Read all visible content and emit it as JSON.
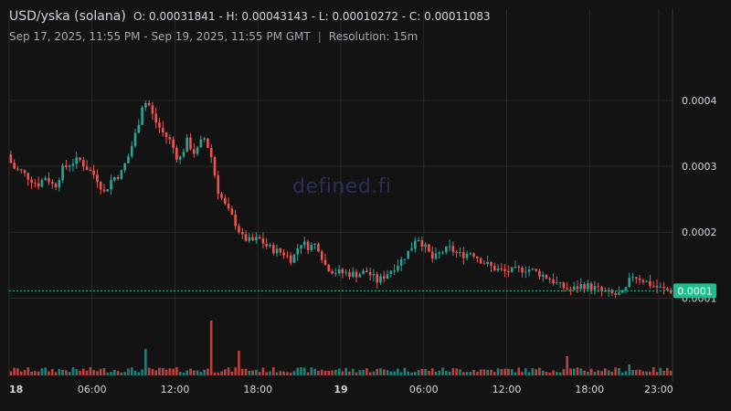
{
  "header": {
    "symbol": "USD/yska (solana)",
    "ohlc": "O: 0.00031841 - H: 0.00043143 - L: 0.00010272 - C: 0.00011083",
    "range": "Sep 17, 2025, 11:55 PM - Sep 19, 2025, 11:55 PM GMT",
    "separator": "|",
    "resolution": "Resolution: 15m"
  },
  "watermark": "defined.fi",
  "colors": {
    "up": "#26a69a",
    "down": "#ef5350",
    "last_price": "#1dbf8f",
    "grid": "#2a2a2a",
    "axis_text": "#d1d4dc",
    "background": "#131313"
  },
  "chart_data": {
    "type": "candlestick",
    "interval": "15m",
    "yaxis": {
      "position": "right",
      "ticks": [
        "0.0004",
        "0.0003",
        "0.0002",
        "0.0001"
      ],
      "tick_values": [
        0.0004,
        0.0003,
        0.0002,
        0.0001
      ],
      "ylim": [
        8.8e-05,
        0.00049
      ]
    },
    "xaxis": {
      "ticks": [
        "18",
        "06:00",
        "12:00",
        "18:00",
        "19",
        "06:00",
        "12:00",
        "18:00",
        "23:00"
      ],
      "tick_hours": [
        0,
        6,
        12,
        18,
        24,
        30,
        36,
        42,
        47
      ],
      "bold_ticks": [
        "18",
        "19"
      ],
      "xlim_hours": [
        0,
        48
      ]
    },
    "last_price_label": "0.0001",
    "last_price": 0.000111,
    "price_path": [
      [
        0,
        0.000318
      ],
      [
        0.4,
        0.000298
      ],
      [
        1.0,
        0.000292
      ],
      [
        1.6,
        0.000282
      ],
      [
        2.2,
        0.000272
      ],
      [
        2.8,
        0.000285
      ],
      [
        3.4,
        0.000268
      ],
      [
        4.0,
        0.000296
      ],
      [
        4.6,
        0.000305
      ],
      [
        5.2,
        0.00031
      ],
      [
        5.8,
        0.000296
      ],
      [
        6.4,
        0.000285
      ],
      [
        7.0,
        0.00026
      ],
      [
        7.6,
        0.000282
      ],
      [
        8.2,
        0.000288
      ],
      [
        8.8,
        0.000318
      ],
      [
        9.4,
        0.000358
      ],
      [
        9.8,
        0.000398
      ],
      [
        10.2,
        0.000395
      ],
      [
        10.6,
        0.000372
      ],
      [
        11.2,
        0.000352
      ],
      [
        11.8,
        0.000338
      ],
      [
        12.4,
        0.000308
      ],
      [
        13.0,
        0.000338
      ],
      [
        13.6,
        0.000318
      ],
      [
        14.2,
        0.000345
      ],
      [
        14.7,
        0.00032
      ],
      [
        15.2,
        0.000265
      ],
      [
        15.8,
        0.000238
      ],
      [
        16.4,
        0.000218
      ],
      [
        17.0,
        0.000192
      ],
      [
        17.6,
        0.000186
      ],
      [
        18.2,
        0.00019
      ],
      [
        18.8,
        0.000178
      ],
      [
        19.4,
        0.000172
      ],
      [
        20.0,
        0.000168
      ],
      [
        20.6,
        0.000158
      ],
      [
        21.2,
        0.000185
      ],
      [
        21.8,
        0.000178
      ],
      [
        22.4,
        0.000182
      ],
      [
        23.0,
        0.00015
      ],
      [
        23.6,
        0.00014
      ],
      [
        24.4,
        0.000138
      ],
      [
        25.2,
        0.000136
      ],
      [
        26.0,
        0.00014
      ],
      [
        26.8,
        0.000125
      ],
      [
        27.6,
        0.00014
      ],
      [
        28.4,
        0.000155
      ],
      [
        29.2,
        0.000175
      ],
      [
        29.6,
        0.000195
      ],
      [
        30.2,
        0.000178
      ],
      [
        30.8,
        0.000158
      ],
      [
        31.4,
        0.00017
      ],
      [
        32.0,
        0.000175
      ],
      [
        32.8,
        0.000165
      ],
      [
        33.6,
        0.00017
      ],
      [
        34.4,
        0.000155
      ],
      [
        35.2,
        0.000145
      ],
      [
        36.0,
        0.00014
      ],
      [
        36.8,
        0.000142
      ],
      [
        37.6,
        0.000145
      ],
      [
        38.4,
        0.000138
      ],
      [
        39.2,
        0.00013
      ],
      [
        40.0,
        0.000118
      ],
      [
        40.8,
        0.000112
      ],
      [
        41.6,
        0.00012
      ],
      [
        42.4,
        0.000116
      ],
      [
        43.2,
        0.000108
      ],
      [
        44.0,
        0.000105
      ],
      [
        44.6,
        0.000106
      ],
      [
        45.2,
        0.000135
      ],
      [
        45.8,
        0.00013
      ],
      [
        46.6,
        0.00012
      ],
      [
        47.4,
        0.000113
      ],
      [
        48.0,
        0.000111
      ]
    ],
    "volume_spikes": [
      {
        "hour": 9.8,
        "relative": 0.48
      },
      {
        "hour": 14.6,
        "relative": 1.0
      },
      {
        "hour": 16.6,
        "relative": 0.45
      },
      {
        "hour": 40.4,
        "relative": 0.35
      },
      {
        "hour": 44.8,
        "relative": 0.2
      }
    ]
  }
}
